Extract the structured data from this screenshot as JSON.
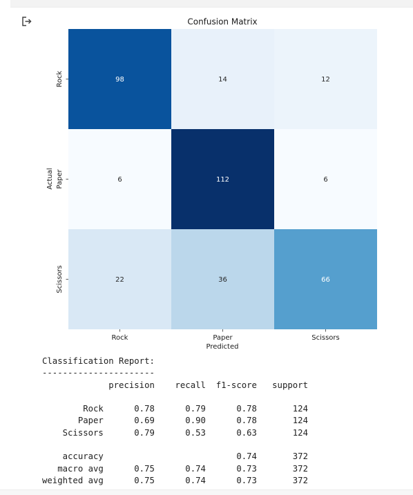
{
  "output_icon": "output-arrow-icon",
  "chart_data": {
    "type": "heatmap",
    "title": "Confusion Matrix",
    "xlabel": "Predicted",
    "ylabel": "Actual",
    "x_categories": [
      "Rock",
      "Paper",
      "Scissors"
    ],
    "y_categories": [
      "Rock",
      "Paper",
      "Scissors"
    ],
    "values": [
      [
        98,
        14,
        12
      ],
      [
        6,
        112,
        6
      ],
      [
        22,
        36,
        66
      ]
    ],
    "colormap": "Blues",
    "colorbar": false,
    "grid": false
  },
  "report": {
    "title": "Classification Report:",
    "separator": "----------------------",
    "headers": [
      "precision",
      "recall",
      "f1-score",
      "support"
    ],
    "rows": [
      {
        "label": "Rock",
        "values": [
          "0.78",
          "0.79",
          "0.78",
          "124"
        ]
      },
      {
        "label": "Paper",
        "values": [
          "0.69",
          "0.90",
          "0.78",
          "124"
        ]
      },
      {
        "label": "Scissors",
        "values": [
          "0.79",
          "0.53",
          "0.63",
          "124"
        ]
      }
    ],
    "summary": [
      {
        "label": "accuracy",
        "values": [
          "",
          "",
          "0.74",
          "372"
        ]
      },
      {
        "label": "macro avg",
        "values": [
          "0.75",
          "0.74",
          "0.73",
          "372"
        ]
      },
      {
        "label": "weighted avg",
        "values": [
          "0.75",
          "0.74",
          "0.73",
          "372"
        ]
      }
    ]
  }
}
